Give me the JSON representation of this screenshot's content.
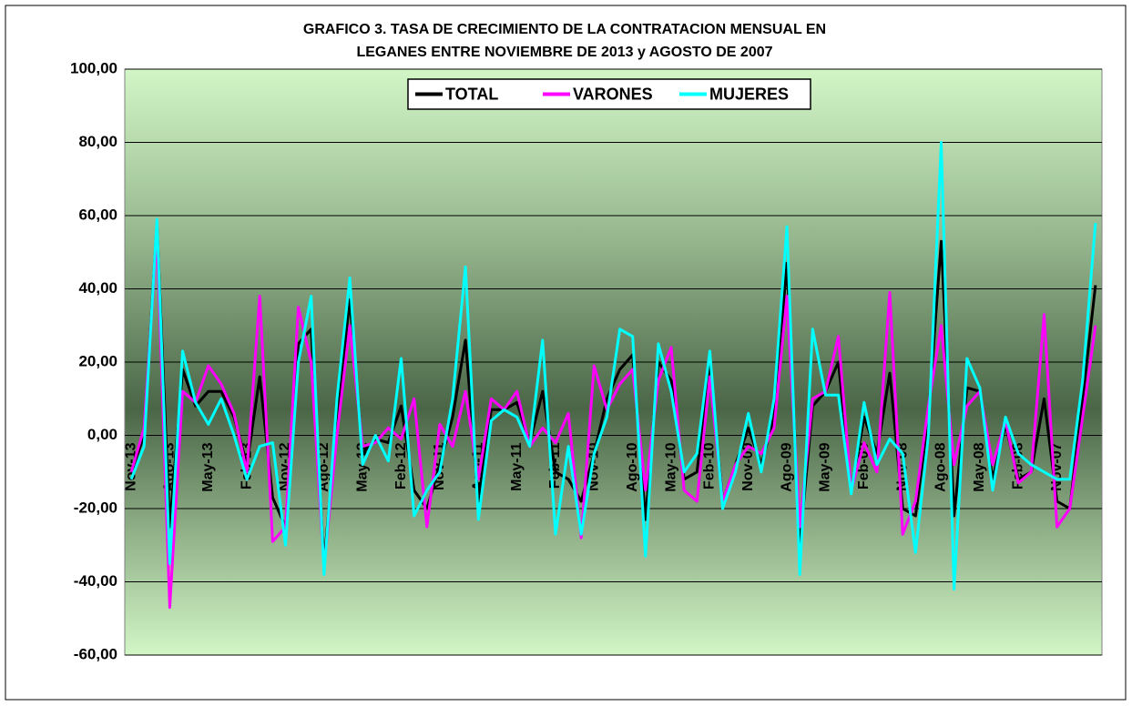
{
  "chart_data": {
    "type": "line",
    "title": [
      "GRAFICO 3. TASA DE CRECIMIENTO DE LA CONTRATACION MENSUAL EN",
      "LEGANES ENTRE NOVIEMBRE DE 2013 y AGOSTO DE 2007"
    ],
    "categories": [
      "Nov-13",
      null,
      null,
      "Ago-13",
      null,
      null,
      "May-13",
      null,
      null,
      "Feb-13",
      null,
      null,
      "Nov-12",
      null,
      null,
      "Ago-12",
      null,
      null,
      "May-12",
      null,
      null,
      "Feb-12",
      null,
      null,
      "Nov-11",
      null,
      null,
      "Ago-11",
      null,
      null,
      "May-11",
      null,
      null,
      "Feb-11",
      null,
      null,
      "Nov-10",
      null,
      null,
      "Ago-10",
      null,
      null,
      "May-10",
      null,
      null,
      "Feb-10",
      null,
      null,
      "Nov-09",
      null,
      null,
      "Ago-09",
      null,
      null,
      "May-09",
      null,
      null,
      "Feb-09",
      null,
      null,
      "Nov-08",
      null,
      null,
      "Ago-08",
      null,
      null,
      "May-08",
      null,
      null,
      "Feb-08",
      null,
      null,
      "Nov-07",
      null,
      null,
      null
    ],
    "series": [
      {
        "name": "TOTAL",
        "color": "#000000",
        "values": [
          -10,
          0,
          58,
          -25,
          18,
          8,
          12,
          12,
          5,
          -8,
          16,
          -17,
          -25,
          25,
          29,
          -35,
          5,
          37,
          -5,
          -1,
          -2,
          8,
          -15,
          -20,
          -8,
          5,
          26,
          -18,
          7,
          7,
          9,
          -2,
          12,
          -10,
          -12,
          -18,
          -5,
          10,
          18,
          22,
          -23,
          20,
          15,
          -12,
          -10,
          20,
          -18,
          -8,
          2,
          -8,
          5,
          47,
          -30,
          8,
          12,
          20,
          -15,
          5,
          -5,
          17,
          -20,
          -22,
          5,
          53,
          -22,
          13,
          12,
          -12,
          3,
          -12,
          -10,
          10,
          -18,
          -20,
          10,
          41
        ]
      },
      {
        "name": "VARONES",
        "color": "#ff00ff",
        "values": [
          -10,
          2,
          55,
          -47,
          12,
          9,
          19,
          14,
          6,
          -10,
          38,
          -29,
          -25,
          35,
          20,
          -36,
          0,
          30,
          -3,
          -2,
          2,
          -1,
          10,
          -25,
          3,
          -3,
          12,
          -12,
          10,
          7,
          12,
          -3,
          2,
          -2,
          6,
          -28,
          19,
          7,
          14,
          18,
          -15,
          15,
          24,
          -15,
          -18,
          16,
          -18,
          -8,
          -3,
          -5,
          2,
          38,
          -25,
          10,
          12,
          27,
          -15,
          -2,
          -10,
          39,
          -27,
          -18,
          8,
          30,
          -8,
          8,
          12,
          -8,
          4,
          -13,
          -10,
          33,
          -25,
          -20,
          5,
          30
        ]
      },
      {
        "name": "MUJERES",
        "color": "#00ffff",
        "values": [
          -12,
          -3,
          59,
          -35,
          23,
          9,
          3,
          10,
          0,
          -12,
          -3,
          -2,
          -30,
          20,
          38,
          -38,
          10,
          43,
          -8,
          0,
          -7,
          21,
          -22,
          -15,
          -10,
          10,
          46,
          -23,
          4,
          7,
          5,
          -3,
          26,
          -27,
          -3,
          -27,
          -5,
          5,
          29,
          27,
          -33,
          25,
          12,
          -10,
          -5,
          23,
          -20,
          -10,
          6,
          -10,
          10,
          57,
          -38,
          29,
          11,
          11,
          -16,
          9,
          -8,
          -1,
          -5,
          -32,
          0,
          80,
          -42,
          21,
          13,
          -15,
          5,
          -5,
          -8,
          -10,
          -12,
          -12,
          15,
          58
        ]
      }
    ],
    "ylim": [
      -60,
      100
    ],
    "yticks": [
      {
        "value": -60,
        "label": "-60,00"
      },
      {
        "value": -40,
        "label": "-40,00"
      },
      {
        "value": -20,
        "label": "-20,00"
      },
      {
        "value": 0,
        "label": "0,00"
      },
      {
        "value": 20,
        "label": "20,00"
      },
      {
        "value": 40,
        "label": "40,00"
      },
      {
        "value": 60,
        "label": "60,00"
      },
      {
        "value": 80,
        "label": "80,00"
      },
      {
        "value": 100,
        "label": "100,00"
      }
    ],
    "grid": true,
    "legend": "top"
  }
}
